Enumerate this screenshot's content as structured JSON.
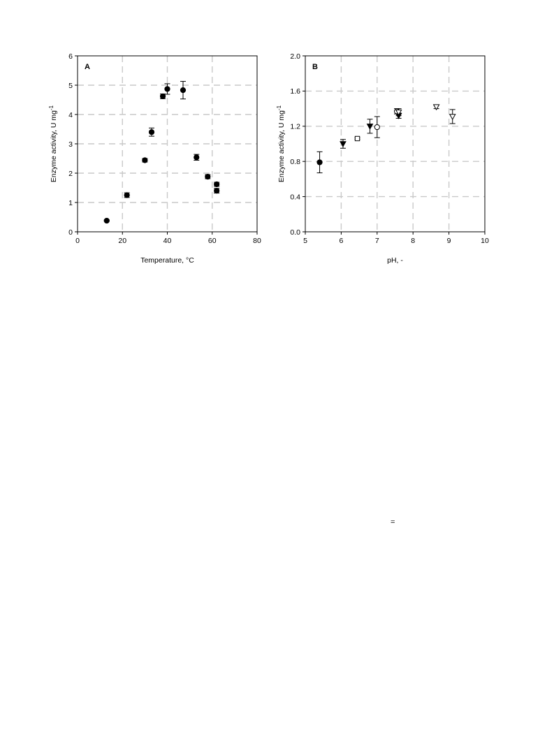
{
  "chart_data": [
    {
      "type": "scatter",
      "panel_label": "A",
      "xlabel": "Temperature, °C",
      "ylabel": "Enzyme activity, U mg",
      "ylabel_superscript": "-1",
      "xlim": [
        0,
        80
      ],
      "ylim": [
        0,
        6
      ],
      "xticks": [
        "0",
        "20",
        "40",
        "60",
        "80"
      ],
      "yticks": [
        "0",
        "1",
        "2",
        "3",
        "4",
        "5",
        "6"
      ],
      "grid": true,
      "series": [
        {
          "marker": "filled-circle",
          "x": [
            13,
            22,
            30,
            33,
            38,
            40,
            47,
            53,
            58,
            62,
            62
          ],
          "y": [
            0.38,
            1.25,
            2.44,
            3.4,
            4.62,
            4.87,
            4.83,
            2.54,
            1.88,
            1.62,
            1.4
          ],
          "err": [
            0.02,
            0.08,
            0.06,
            0.14,
            0.08,
            0.18,
            0.3,
            0.1,
            0.07,
            0.07,
            0.08
          ]
        }
      ]
    },
    {
      "type": "scatter",
      "panel_label": "B",
      "xlabel": "pH, -",
      "ylabel": "Enzyme activity, U mg",
      "ylabel_superscript": "-1",
      "xlim": [
        5,
        10
      ],
      "ylim": [
        0,
        2
      ],
      "xticks": [
        "5",
        "6",
        "7",
        "8",
        "9",
        "10"
      ],
      "yticks": [
        "0.0",
        "0.4",
        "0.8",
        "1.2",
        "1.6",
        "2.0"
      ],
      "grid": true,
      "series": [
        {
          "marker": "filled-circle",
          "x": [
            5.4
          ],
          "y": [
            0.79
          ],
          "err": [
            0.12
          ]
        },
        {
          "marker": "filled-triangle-down",
          "x": [
            6.05,
            6.8,
            7.6
          ],
          "y": [
            1.0,
            1.2,
            1.32
          ],
          "err": [
            0.05,
            0.08,
            0.03
          ]
        },
        {
          "marker": "open-square",
          "x": [
            6.45
          ],
          "y": [
            1.06
          ],
          "err": [
            0.01
          ]
        },
        {
          "marker": "open-circle",
          "x": [
            7.0,
            7.55
          ],
          "y": [
            1.19,
            1.37
          ],
          "err": [
            0.12,
            0.03
          ]
        },
        {
          "marker": "open-triangle-down",
          "x": [
            7.6,
            8.65,
            9.1
          ],
          "y": [
            1.36,
            1.42,
            1.31
          ],
          "err": [
            0.04,
            0.02,
            0.08
          ]
        }
      ]
    }
  ],
  "page": {
    "stray_mark": "="
  }
}
